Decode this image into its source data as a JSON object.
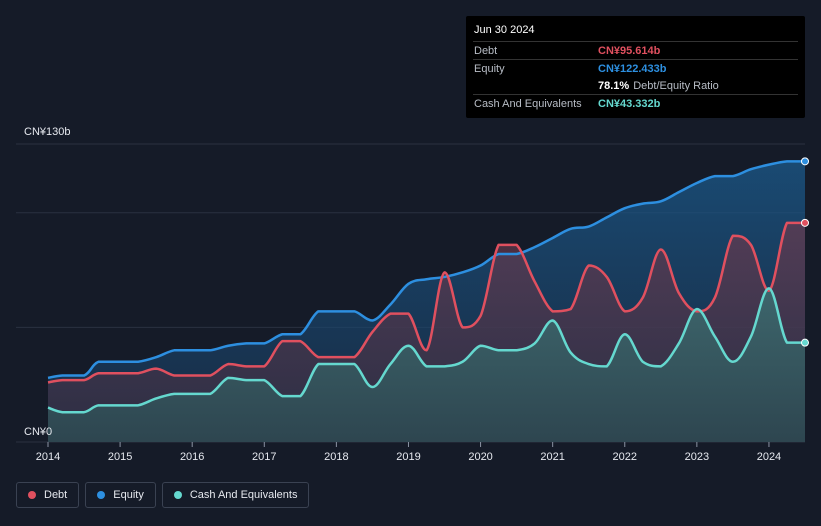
{
  "chart_data": {
    "type": "area",
    "x_labels": [
      "2014",
      "2015",
      "2016",
      "2017",
      "2018",
      "2019",
      "2020",
      "2021",
      "2022",
      "2023",
      "2024"
    ],
    "ylim": [
      0,
      130
    ],
    "y_tick_labels": {
      "top": "CN¥130b",
      "bottom": "CN¥0"
    },
    "x_range": [
      2014.0,
      2024.5
    ],
    "series": [
      {
        "name": "Equity",
        "color": "#2d8fe0",
        "points": [
          [
            2014.0,
            28
          ],
          [
            2014.2,
            29
          ],
          [
            2014.5,
            29
          ],
          [
            2014.7,
            35
          ],
          [
            2015.0,
            35
          ],
          [
            2015.25,
            35
          ],
          [
            2015.5,
            37
          ],
          [
            2015.75,
            40
          ],
          [
            2016.0,
            40
          ],
          [
            2016.25,
            40
          ],
          [
            2016.5,
            42
          ],
          [
            2016.75,
            43
          ],
          [
            2017.0,
            43
          ],
          [
            2017.25,
            47
          ],
          [
            2017.5,
            47
          ],
          [
            2017.75,
            57
          ],
          [
            2018.0,
            57
          ],
          [
            2018.25,
            57
          ],
          [
            2018.5,
            53
          ],
          [
            2018.75,
            60
          ],
          [
            2019.0,
            69
          ],
          [
            2019.25,
            71
          ],
          [
            2019.5,
            72
          ],
          [
            2019.75,
            74
          ],
          [
            2020.0,
            77
          ],
          [
            2020.25,
            82
          ],
          [
            2020.5,
            82
          ],
          [
            2020.75,
            85
          ],
          [
            2021.0,
            89
          ],
          [
            2021.25,
            93
          ],
          [
            2021.5,
            94
          ],
          [
            2021.75,
            98
          ],
          [
            2022.0,
            102
          ],
          [
            2022.25,
            104
          ],
          [
            2022.5,
            105
          ],
          [
            2022.75,
            109
          ],
          [
            2023.0,
            113
          ],
          [
            2023.25,
            116
          ],
          [
            2023.5,
            116
          ],
          [
            2023.75,
            119
          ],
          [
            2024.0,
            121
          ],
          [
            2024.25,
            122.433
          ],
          [
            2024.5,
            122.433
          ]
        ]
      },
      {
        "name": "Debt",
        "color": "#e0505f",
        "points": [
          [
            2014.0,
            26
          ],
          [
            2014.2,
            27
          ],
          [
            2014.5,
            27
          ],
          [
            2014.7,
            30
          ],
          [
            2015.0,
            30
          ],
          [
            2015.25,
            30
          ],
          [
            2015.5,
            32
          ],
          [
            2015.75,
            29
          ],
          [
            2016.0,
            29
          ],
          [
            2016.25,
            29
          ],
          [
            2016.5,
            34
          ],
          [
            2016.75,
            33
          ],
          [
            2017.0,
            33
          ],
          [
            2017.25,
            44
          ],
          [
            2017.5,
            44
          ],
          [
            2017.75,
            37
          ],
          [
            2018.0,
            37
          ],
          [
            2018.25,
            37
          ],
          [
            2018.5,
            48
          ],
          [
            2018.75,
            56
          ],
          [
            2019.0,
            56
          ],
          [
            2019.25,
            40
          ],
          [
            2019.5,
            74
          ],
          [
            2019.75,
            50
          ],
          [
            2020.0,
            55
          ],
          [
            2020.25,
            86
          ],
          [
            2020.5,
            86
          ],
          [
            2020.75,
            70
          ],
          [
            2021.0,
            57
          ],
          [
            2021.25,
            58
          ],
          [
            2021.5,
            77
          ],
          [
            2021.75,
            72
          ],
          [
            2022.0,
            57
          ],
          [
            2022.25,
            63
          ],
          [
            2022.5,
            84
          ],
          [
            2022.75,
            65
          ],
          [
            2023.0,
            57
          ],
          [
            2023.25,
            63
          ],
          [
            2023.5,
            90
          ],
          [
            2023.75,
            86
          ],
          [
            2024.0,
            66
          ],
          [
            2024.25,
            95.614
          ],
          [
            2024.5,
            95.614
          ]
        ]
      },
      {
        "name": "Cash And Equivalents",
        "color": "#65d8cf",
        "points": [
          [
            2014.0,
            15
          ],
          [
            2014.2,
            13
          ],
          [
            2014.5,
            13
          ],
          [
            2014.7,
            16
          ],
          [
            2015.0,
            16
          ],
          [
            2015.25,
            16
          ],
          [
            2015.5,
            19
          ],
          [
            2015.75,
            21
          ],
          [
            2016.0,
            21
          ],
          [
            2016.25,
            21
          ],
          [
            2016.5,
            28
          ],
          [
            2016.75,
            27
          ],
          [
            2017.0,
            27
          ],
          [
            2017.25,
            20
          ],
          [
            2017.5,
            20
          ],
          [
            2017.75,
            34
          ],
          [
            2018.0,
            34
          ],
          [
            2018.25,
            34
          ],
          [
            2018.5,
            24
          ],
          [
            2018.75,
            34
          ],
          [
            2019.0,
            42
          ],
          [
            2019.25,
            33
          ],
          [
            2019.5,
            33
          ],
          [
            2019.75,
            35
          ],
          [
            2020.0,
            42
          ],
          [
            2020.25,
            40
          ],
          [
            2020.5,
            40
          ],
          [
            2020.75,
            43
          ],
          [
            2021.0,
            53
          ],
          [
            2021.25,
            39
          ],
          [
            2021.5,
            34
          ],
          [
            2021.75,
            33
          ],
          [
            2022.0,
            47
          ],
          [
            2022.25,
            35
          ],
          [
            2022.5,
            33
          ],
          [
            2022.75,
            43
          ],
          [
            2023.0,
            58
          ],
          [
            2023.25,
            46
          ],
          [
            2023.5,
            35
          ],
          [
            2023.75,
            46
          ],
          [
            2024.0,
            67
          ],
          [
            2024.25,
            43.332
          ],
          [
            2024.5,
            43.332
          ]
        ]
      }
    ]
  },
  "tooltip": {
    "date": "Jun 30 2024",
    "rows": [
      {
        "label": "Debt",
        "value": "CN¥95.614b",
        "color": "#e0505f"
      },
      {
        "label": "Equity",
        "value": "CN¥122.433b",
        "color": "#2d8fe0"
      },
      {
        "label": "",
        "value": "78.1%",
        "unit": "Debt/Equity Ratio"
      },
      {
        "label": "Cash And Equivalents",
        "value": "CN¥43.332b",
        "color": "#65d8cf"
      }
    ]
  },
  "legend": [
    {
      "label": "Debt",
      "color": "#e0505f"
    },
    {
      "label": "Equity",
      "color": "#2d8fe0"
    },
    {
      "label": "Cash And Equivalents",
      "color": "#65d8cf"
    }
  ]
}
